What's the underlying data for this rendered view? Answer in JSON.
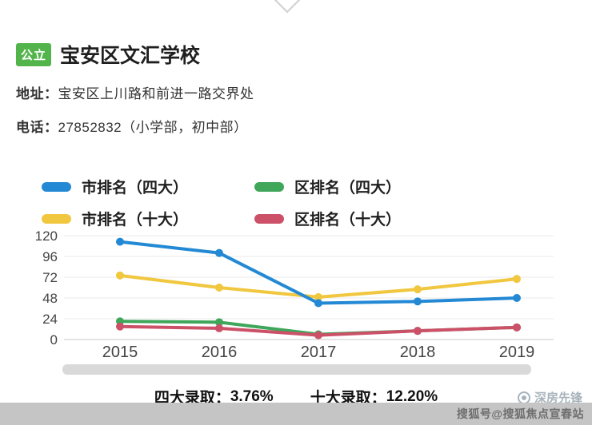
{
  "header": {
    "badge": "公立",
    "title": "宝安区文汇学校",
    "address_label": "地址：",
    "address": "宝安区上川路和前进一路交界处",
    "phone_label": "电话：",
    "phone": "27852832（小学部，初中部）"
  },
  "chart_data": {
    "type": "line",
    "x": [
      "2015",
      "2016",
      "2017",
      "2018",
      "2019"
    ],
    "series": [
      {
        "name": "市排名（四大）",
        "color": "#2389d4",
        "values": [
          113,
          100,
          42,
          44,
          48
        ]
      },
      {
        "name": "市排名（十大）",
        "color": "#f0c73e",
        "values": [
          74,
          60,
          49,
          58,
          70
        ]
      },
      {
        "name": "区排名（四大）",
        "color": "#3fa65a",
        "values": [
          21,
          20,
          6,
          10,
          14
        ]
      },
      {
        "name": "区排名（十大）",
        "color": "#cc5168",
        "values": [
          15,
          13,
          5,
          10,
          14
        ]
      }
    ],
    "ylim": [
      0,
      120
    ],
    "yticks": [
      0,
      24,
      48,
      72,
      96,
      120
    ],
    "grid": true,
    "legend_position": "top",
    "xlabel": "",
    "ylabel": ""
  },
  "stats": {
    "four_label": "四大录取：",
    "four_value": "3.76%",
    "ten_label": "十大录取：",
    "ten_value": "12.20%"
  },
  "watermark": {
    "brand": "深房先锋",
    "footer": "搜狐号@搜狐焦点宣春站"
  }
}
